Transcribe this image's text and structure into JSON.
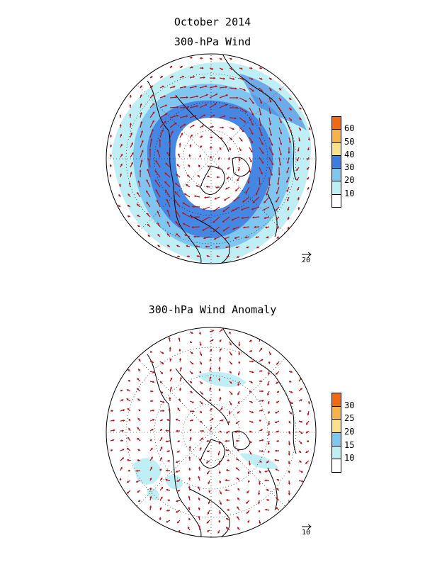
{
  "header": {
    "date": "October 2014",
    "top_title": "300-hPa Wind",
    "bottom_title": "300-hPa Wind Anomaly"
  },
  "maps": [
    {
      "id": "wind",
      "levels": [
        "10",
        "20",
        "30",
        "40",
        "50",
        "60"
      ],
      "colors": [
        "#ffffff",
        "#bfeff4",
        "#7fc7f1",
        "#3b7de0",
        "#f8e38c",
        "#f5b349",
        "#f06a14"
      ],
      "reference_vector": "20"
    },
    {
      "id": "anomaly",
      "levels": [
        "10",
        "15",
        "20",
        "25",
        "30"
      ],
      "colors": [
        "#ffffff",
        "#bfeff4",
        "#7fc7f1",
        "#f8e38c",
        "#f5b349",
        "#f06a14"
      ],
      "reference_vector": "10"
    }
  ],
  "colors": {
    "arrow": "#c01010",
    "coast": "#000000",
    "grid": "#000000"
  }
}
